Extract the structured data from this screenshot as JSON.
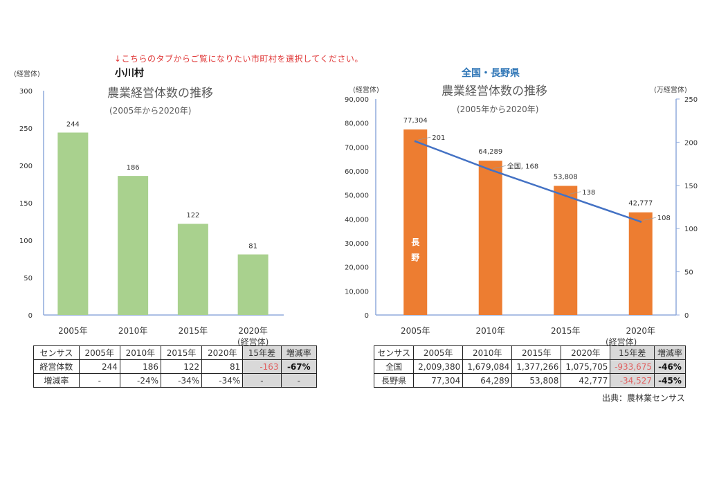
{
  "notice": "↓こちらのタブからご覧になりたい市町村を選択してください。",
  "left": {
    "heading": "小川村",
    "table": {
      "unit_label": "(経営体)",
      "headers": [
        "センサス",
        "2005年",
        "2010年",
        "2015年",
        "2020年",
        "15年差",
        "増減率"
      ],
      "rows": [
        [
          "経営体数",
          "244",
          "186",
          "122",
          "81",
          "-163",
          "-67%"
        ],
        [
          "増減率",
          "-",
          "-24%",
          "-34%",
          "-34%",
          "-",
          "-"
        ]
      ]
    }
  },
  "right": {
    "heading": "全国・長野県",
    "table": {
      "unit_label": "(経営体)",
      "headers": [
        "センサス",
        "2005年",
        "2010年",
        "2015年",
        "2020年",
        "15年差",
        "増減率"
      ],
      "rows": [
        [
          "全国",
          "2,009,380",
          "1,679,084",
          "1,377,266",
          "1,075,705",
          "-933,675",
          "-46%"
        ],
        [
          "長野県",
          "77,304",
          "64,289",
          "53,808",
          "42,777",
          "-34,527",
          "-45%"
        ]
      ]
    },
    "source": "出典：農林業センサス"
  },
  "chart_data": [
    {
      "type": "bar",
      "title": "農業経営体数の推移",
      "subtitle": "(2005年から2020年)",
      "ylabel": "(経営体)",
      "categories": [
        "2005年",
        "2010年",
        "2015年",
        "2020年"
      ],
      "values": [
        244,
        186,
        122,
        81
      ],
      "data_labels": [
        "244",
        "186",
        "122",
        "81"
      ],
      "ylim": [
        0,
        300
      ],
      "yticks": [
        "0",
        "50",
        "100",
        "150",
        "200",
        "250",
        "300"
      ],
      "color": "#a9d18e",
      "grid": false
    },
    {
      "type": "bar+line",
      "title": "農業経営体数の推移",
      "subtitle": "(2005年から2020年)",
      "ylabel": "(経営体)",
      "y2label": "(万経営体)",
      "categories": [
        "2005年",
        "2010年",
        "2015年",
        "2020年"
      ],
      "series": [
        {
          "name": "長野",
          "type": "bar",
          "axis": "left",
          "values": [
            77304,
            64289,
            53808,
            42777
          ],
          "data_labels": [
            "77,304",
            "64,289",
            "53,808",
            "42,777"
          ],
          "color": "#ed7d31"
        },
        {
          "name": "全国",
          "type": "line",
          "axis": "right",
          "values": [
            201,
            168,
            138,
            108
          ],
          "data_labels": [
            "201",
            "全国, 168",
            "138",
            "108"
          ],
          "color": "#4472c4"
        }
      ],
      "ylim": [
        0,
        90000
      ],
      "yticks": [
        "0",
        "10,000",
        "20,000",
        "30,000",
        "40,000",
        "50,000",
        "60,000",
        "70,000",
        "80,000",
        "90,000"
      ],
      "y2lim": [
        0,
        250
      ],
      "y2ticks": [
        "0",
        "50",
        "100",
        "150",
        "200",
        "250"
      ],
      "grid": false
    }
  ]
}
